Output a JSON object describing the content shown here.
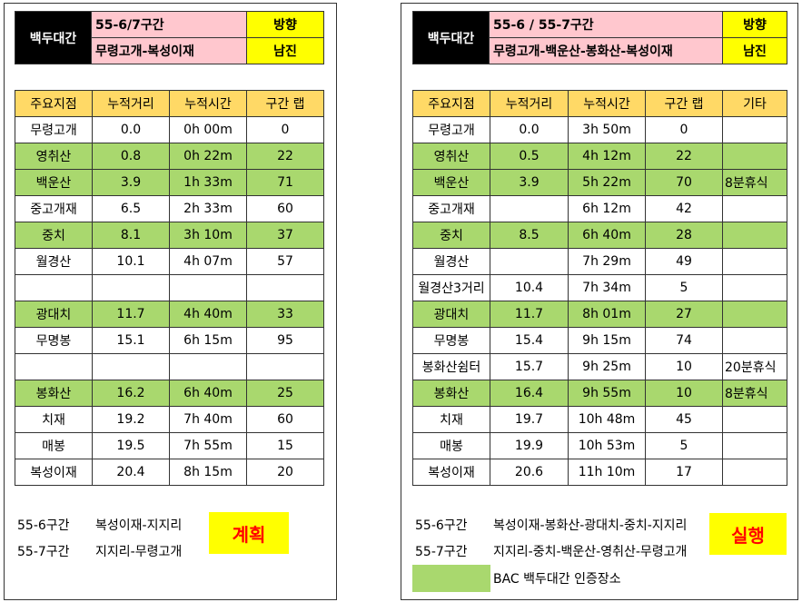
{
  "highlight_color": "#a9d86e",
  "plan": {
    "header": {
      "title": "백두대간",
      "section": "55-6/7구간",
      "route": "무령고개-복성이재",
      "direction_label": "방향",
      "direction": "남진"
    },
    "table": {
      "columns": [
        "주요지점",
        "누적거리",
        "누적시간",
        "구간 랩"
      ],
      "rows": [
        [
          "무령고개",
          "0.0",
          "0h 00m",
          "0"
        ],
        [
          "영취산",
          "0.8",
          "0h 22m",
          "22"
        ],
        [
          "백운산",
          "3.9",
          "1h 33m",
          "71"
        ],
        [
          "중고개재",
          "6.5",
          "2h 33m",
          "60"
        ],
        [
          "중치",
          "8.1",
          "3h 10m",
          "37"
        ],
        [
          "월경산",
          "10.1",
          "4h 07m",
          "57"
        ],
        [
          null,
          null,
          null,
          null
        ],
        [
          "광대치",
          "11.7",
          "4h 40m",
          "33"
        ],
        [
          "무명봉",
          "15.1",
          "6h 15m",
          "95"
        ],
        [
          null,
          null,
          null,
          null
        ],
        [
          "봉화산",
          "16.2",
          "6h 40m",
          "25"
        ],
        [
          "치재",
          "19.2",
          "7h 40m",
          "60"
        ],
        [
          "매봉",
          "19.5",
          "7h 55m",
          "15"
        ],
        [
          "복성이재",
          "20.4",
          "8h 15m",
          "20"
        ]
      ],
      "highlight": [
        false,
        true,
        true,
        false,
        true,
        false,
        false,
        true,
        false,
        false,
        true,
        false,
        false,
        false
      ]
    },
    "notes": [
      [
        "55-6구간",
        "복성이재-지지리"
      ],
      [
        "55-7구간",
        "지지리-무령고개"
      ]
    ],
    "badge": "계획"
  },
  "actual": {
    "header": {
      "title": "백두대간",
      "section": "55-6 / 55-7구간",
      "route": "무령고개-백운산-봉화산-복성이재",
      "direction_label": "방향",
      "direction": "남진"
    },
    "table": {
      "columns": [
        "주요지점",
        "누적거리",
        "누적시간",
        "구간 랩",
        "기타"
      ],
      "rows": [
        [
          "무령고개",
          "0.0",
          "3h 50m",
          "0",
          null
        ],
        [
          "영취산",
          "0.5",
          "4h 12m",
          "22",
          null
        ],
        [
          "백운산",
          "3.9",
          "5h 22m",
          "70",
          "8분휴식"
        ],
        [
          "중고개재",
          null,
          "6h 12m",
          "42",
          null
        ],
        [
          "중치",
          "8.5",
          "6h 40m",
          "28",
          null
        ],
        [
          "월경산",
          null,
          "7h 29m",
          "49",
          null
        ],
        [
          "월경산3거리",
          "10.4",
          "7h 34m",
          "5",
          null
        ],
        [
          "광대치",
          "11.7",
          "8h 01m",
          "27",
          null
        ],
        [
          "무명봉",
          "15.4",
          "9h 15m",
          "74",
          null
        ],
        [
          "봉화산쉼터",
          "15.7",
          "9h 25m",
          "10",
          "20분휴식"
        ],
        [
          "봉화산",
          "16.4",
          "9h 55m",
          "10",
          "8분휴식"
        ],
        [
          "치재",
          "19.7",
          "10h 48m",
          "45",
          null
        ],
        [
          "매봉",
          "19.9",
          "10h 53m",
          "5",
          null
        ],
        [
          "복성이재",
          "20.6",
          "11h 10m",
          "17",
          null
        ]
      ],
      "highlight": [
        false,
        true,
        true,
        false,
        true,
        false,
        false,
        true,
        false,
        false,
        true,
        false,
        false,
        false
      ]
    },
    "notes": [
      [
        "55-6구간",
        "복성이재-봉화산-광대치-중치-지지리"
      ],
      [
        "55-7구간",
        "지지리-중치-백운산-영취산-무령고개"
      ]
    ],
    "legend": {
      "label": "BAC 백두대간 인증장소"
    },
    "badge": "실행"
  }
}
